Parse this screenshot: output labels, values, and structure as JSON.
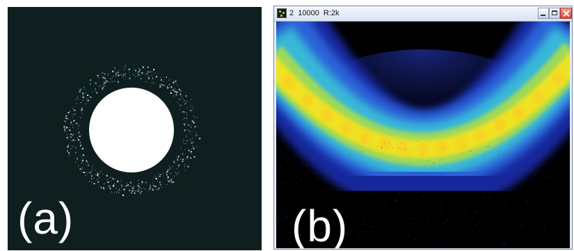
{
  "panel_a": {
    "label": "(a)"
  },
  "panel_b": {
    "label": "(b)",
    "window": {
      "title": "2  10000  R:2k",
      "icon": "app-icon",
      "controls": [
        "minimize-icon",
        "maximize-icon",
        "close-icon"
      ]
    }
  },
  "colors": {
    "panel_a_background": "#0f1f1f",
    "disk": "#ffffff",
    "ring_particles": "#bfe6ff",
    "ring_core": "#f2e61a",
    "ring_mid": "#2ec4c4",
    "ring_outer": "#2a3fd0",
    "window_frame": "#6f86a8"
  }
}
